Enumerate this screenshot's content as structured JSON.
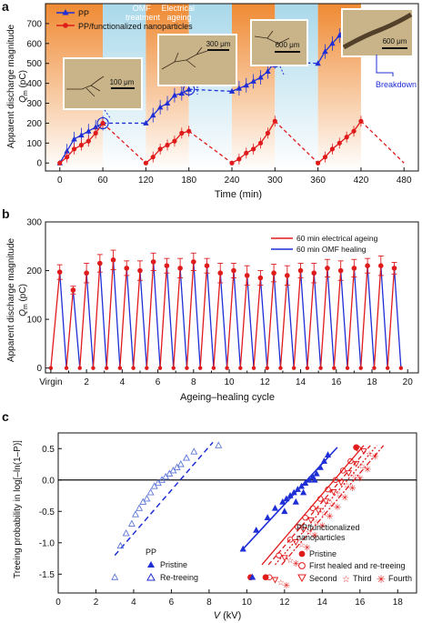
{
  "colors": {
    "pp": "#1f2fd6",
    "pp_light": "#5b76d6",
    "nano": "#e01b1b",
    "orange": "#ef8a33",
    "blue_band": "#a9d8ea"
  },
  "panel_a": {
    "label": "a",
    "band_labels": {
      "omf": "OMF\ntreatment",
      "ageing": "Electrical\nageing"
    },
    "ylabel_line1": "Apparent discharge magnitude",
    "ylabel_line2": "Q",
    "ylabel_sub": "m",
    "ylabel_unit": " (pC)",
    "xlabel": "Time (min)",
    "insets": [
      "100 μm",
      "300 μm",
      "600 μm",
      "600 μm"
    ],
    "breakdown": "Breakdown"
  },
  "panel_b": {
    "label": "b",
    "ylabel_line1": "Apparent discharge magnitude",
    "ylabel_line2": "Q",
    "ylabel_sub": "m",
    "ylabel_unit": " (pC)",
    "xlabel": "Ageing–healing cycle"
  },
  "panel_c": {
    "label": "c",
    "ylabel": "Treeing probability in log[–ln(1–P)]",
    "xlabel_v": "V",
    "xlabel_unit": " (kV)",
    "pp_title": "PP",
    "nano_title": "PP/functionalized\nnanoparticles"
  },
  "chart_data": [
    {
      "type": "line",
      "panel": "a",
      "xlabel": "Time (min)",
      "ylabel": "Apparent discharge magnitude Qm (pC)",
      "xlim": [
        -20,
        500
      ],
      "ylim": [
        -40,
        800
      ],
      "xticks": [
        0,
        60,
        120,
        180,
        240,
        300,
        360,
        420,
        480
      ],
      "yticks": [
        0,
        100,
        200,
        300,
        400,
        500,
        600,
        700
      ],
      "bands": [
        {
          "from": -20,
          "to": 60,
          "kind": "ageing"
        },
        {
          "from": 60,
          "to": 120,
          "kind": "omf"
        },
        {
          "from": 120,
          "to": 180,
          "kind": "ageing"
        },
        {
          "from": 180,
          "to": 240,
          "kind": "omf"
        },
        {
          "from": 240,
          "to": 300,
          "kind": "ageing"
        },
        {
          "from": 300,
          "to": 360,
          "kind": "omf"
        },
        {
          "from": 360,
          "to": 420,
          "kind": "ageing"
        }
      ],
      "series": [
        {
          "name": "PP",
          "segments": [
            {
              "style": "solid",
              "x": [
                0,
                10,
                20,
                30,
                40,
                50,
                60
              ],
              "y": [
                0,
                60,
                120,
                140,
                160,
                180,
                200
              ]
            },
            {
              "style": "dashed",
              "x": [
                60,
                120
              ],
              "y": [
                200,
                200
              ]
            },
            {
              "style": "solid",
              "x": [
                120,
                130,
                140,
                150,
                160,
                170,
                180
              ],
              "y": [
                200,
                240,
                280,
                300,
                340,
                350,
                370
              ]
            },
            {
              "style": "dashed",
              "x": [
                180,
                240
              ],
              "y": [
                370,
                360
              ]
            },
            {
              "style": "solid",
              "x": [
                240,
                250,
                260,
                270,
                280,
                290,
                300
              ],
              "y": [
                360,
                375,
                390,
                410,
                430,
                460,
                510
              ]
            },
            {
              "style": "dashed",
              "x": [
                300,
                360
              ],
              "y": [
                510,
                500
              ]
            },
            {
              "style": "solid",
              "x": [
                360,
                370,
                380,
                390,
                400
              ],
              "y": [
                500,
                560,
                600,
                640,
                700
              ]
            }
          ]
        },
        {
          "name": "PP/functionalized nanoparticles",
          "segments": [
            {
              "style": "solid",
              "x": [
                0,
                10,
                20,
                30,
                40,
                50,
                60
              ],
              "y": [
                0,
                30,
                70,
                90,
                110,
                150,
                200
              ]
            },
            {
              "style": "dashed",
              "x": [
                60,
                120
              ],
              "y": [
                200,
                0
              ]
            },
            {
              "style": "solid",
              "x": [
                120,
                130,
                140,
                150,
                160,
                170,
                180
              ],
              "y": [
                0,
                30,
                70,
                90,
                110,
                150,
                160
              ]
            },
            {
              "style": "dashed",
              "x": [
                180,
                240
              ],
              "y": [
                160,
                0
              ]
            },
            {
              "style": "solid",
              "x": [
                240,
                250,
                260,
                270,
                280,
                290,
                300
              ],
              "y": [
                0,
                20,
                50,
                70,
                100,
                150,
                210
              ]
            },
            {
              "style": "dashed",
              "x": [
                300,
                360
              ],
              "y": [
                210,
                0
              ]
            },
            {
              "style": "solid",
              "x": [
                360,
                370,
                380,
                390,
                400,
                410,
                420
              ],
              "y": [
                0,
                30,
                70,
                100,
                130,
                160,
                210
              ]
            },
            {
              "style": "dashed",
              "x": [
                420,
                480
              ],
              "y": [
                210,
                0
              ]
            }
          ]
        }
      ]
    },
    {
      "type": "line",
      "panel": "b",
      "xlabel": "Ageing–healing cycle",
      "ylabel": "Apparent discharge magnitude Qm (pC)",
      "xlim": [
        -0.3,
        20.6
      ],
      "ylim": [
        -10,
        300
      ],
      "xtick_labels": [
        "Virgin",
        "2",
        "4",
        "6",
        "8",
        "10",
        "12",
        "14",
        "16",
        "18",
        "20"
      ],
      "xticks": [
        0,
        2,
        4,
        6,
        8,
        10,
        12,
        14,
        16,
        18,
        20
      ],
      "yticks": [
        0,
        100,
        200,
        300
      ],
      "series": [
        {
          "name": "60 min electrical ageing",
          "legend": "60 min electrical ageing"
        },
        {
          "name": "60 min OMF healing",
          "legend": "60 min OMF healing"
        }
      ],
      "peaks_x": [
        0.5,
        1.25,
        2,
        2.75,
        3.5,
        4.25,
        5,
        5.75,
        6.5,
        7.25,
        8,
        8.75,
        9.5,
        10.25,
        11,
        11.75,
        12.5,
        13.25,
        14,
        14.75,
        15.5,
        16.25,
        17,
        17.75,
        18.5,
        19.25
      ],
      "peaks_y": [
        197,
        160,
        195,
        215,
        222,
        205,
        200,
        218,
        210,
        205,
        218,
        210,
        195,
        200,
        190,
        185,
        195,
        190,
        200,
        195,
        205,
        200,
        205,
        210,
        210,
        205
      ],
      "peak_err": [
        15,
        8,
        20,
        18,
        20,
        15,
        20,
        18,
        15,
        20,
        18,
        15,
        20,
        15,
        20,
        15,
        18,
        20,
        15,
        20,
        18,
        20,
        18,
        15,
        20,
        12
      ],
      "troughs_x": [
        0,
        0.875,
        1.625,
        2.375,
        3.125,
        3.875,
        4.625,
        5.375,
        6.125,
        6.875,
        7.625,
        8.375,
        9.125,
        9.875,
        10.625,
        11.375,
        12.125,
        12.875,
        13.625,
        14.375,
        15.125,
        15.875,
        16.625,
        17.375,
        18.125,
        18.875,
        19.625
      ],
      "troughs_y": [
        0,
        0,
        0,
        0,
        0,
        0,
        0,
        0,
        0,
        0,
        0,
        0,
        0,
        0,
        0,
        0,
        0,
        0,
        0,
        0,
        0,
        0,
        0,
        0,
        0,
        0,
        0
      ]
    },
    {
      "type": "scatter",
      "panel": "c",
      "xlabel": "V (kV)",
      "ylabel": "Treeing probability in log[–ln(1–P)]",
      "xlim": [
        0,
        19
      ],
      "ylim": [
        -1.8,
        0.75
      ],
      "xticks": [
        0,
        2,
        4,
        6,
        8,
        10,
        12,
        14,
        16,
        18
      ],
      "yticks": [
        -1.5,
        -1.0,
        -0.5,
        0.0,
        0.5
      ],
      "legend_pp": [
        {
          "label": "Pristine",
          "marker": "triangle-filled"
        },
        {
          "label": "Re-treeing",
          "marker": "triangle-open"
        }
      ],
      "legend_nano": [
        {
          "label": "Pristine",
          "marker": "circle-filled"
        },
        {
          "label": "First healed and re-treeing",
          "marker": "circle-open"
        },
        {
          "label": "Second",
          "marker": "triangle-down-open"
        },
        {
          "label": "Third",
          "marker": "star-open"
        },
        {
          "label": "Fourth",
          "marker": "asterisk"
        }
      ],
      "series": [
        {
          "name": "PP pristine",
          "x": [
            9.8,
            10.5,
            11.1,
            11.5,
            11.9,
            12.1,
            12.3,
            12.5,
            12.7,
            12.9,
            13.1,
            13.3,
            13.5,
            13.7,
            13.9,
            14.1,
            14.3,
            10.3,
            12.0,
            12.6,
            13.0,
            13.6
          ],
          "y": [
            -1.1,
            -0.8,
            -0.6,
            -0.45,
            -0.35,
            -0.3,
            -0.25,
            -0.2,
            -0.15,
            -0.1,
            -0.05,
            0.0,
            0.05,
            0.1,
            0.2,
            0.3,
            0.4,
            -1.55,
            -0.5,
            -0.35,
            -0.2,
            0.0
          ],
          "fit": {
            "x": [
              9.8,
              14.8
            ],
            "y": [
              -1.1,
              0.52
            ]
          }
        },
        {
          "name": "PP re-treeing",
          "x": [
            3.0,
            3.3,
            3.6,
            3.9,
            4.1,
            4.3,
            4.5,
            4.7,
            4.9,
            5.1,
            5.3,
            5.5,
            5.7,
            5.9,
            6.1,
            6.3,
            6.5,
            6.8,
            7.2,
            8.5
          ],
          "y": [
            -1.55,
            -1.05,
            -0.85,
            -0.7,
            -0.55,
            -0.45,
            -0.35,
            -0.3,
            -0.2,
            -0.1,
            -0.05,
            0.0,
            0.05,
            0.1,
            0.15,
            0.2,
            0.25,
            0.35,
            0.45,
            0.55
          ],
          "fit": {
            "x": [
              3.0,
              8.2
            ],
            "y": [
              -1.2,
              0.6
            ]
          }
        },
        {
          "name": "Nano pristine",
          "x": [
            10.2,
            11.0,
            15.8
          ],
          "y": [
            -1.55,
            -1.55,
            0.52
          ]
        },
        {
          "name": "Nano re-treeing",
          "x": [
            11.3,
            11.8,
            12.4,
            12.8,
            13.2,
            13.6,
            14.0,
            14.4,
            14.8,
            15.2,
            15.6,
            16.0
          ],
          "y": [
            -1.55,
            -1.2,
            -0.95,
            -0.75,
            -0.6,
            -0.45,
            -0.3,
            -0.15,
            0.0,
            0.15,
            0.3,
            0.5
          ],
          "fit": {
            "x": [
              10.8,
              16.2
            ],
            "y": [
              -1.35,
              0.55
            ]
          }
        }
      ]
    }
  ]
}
